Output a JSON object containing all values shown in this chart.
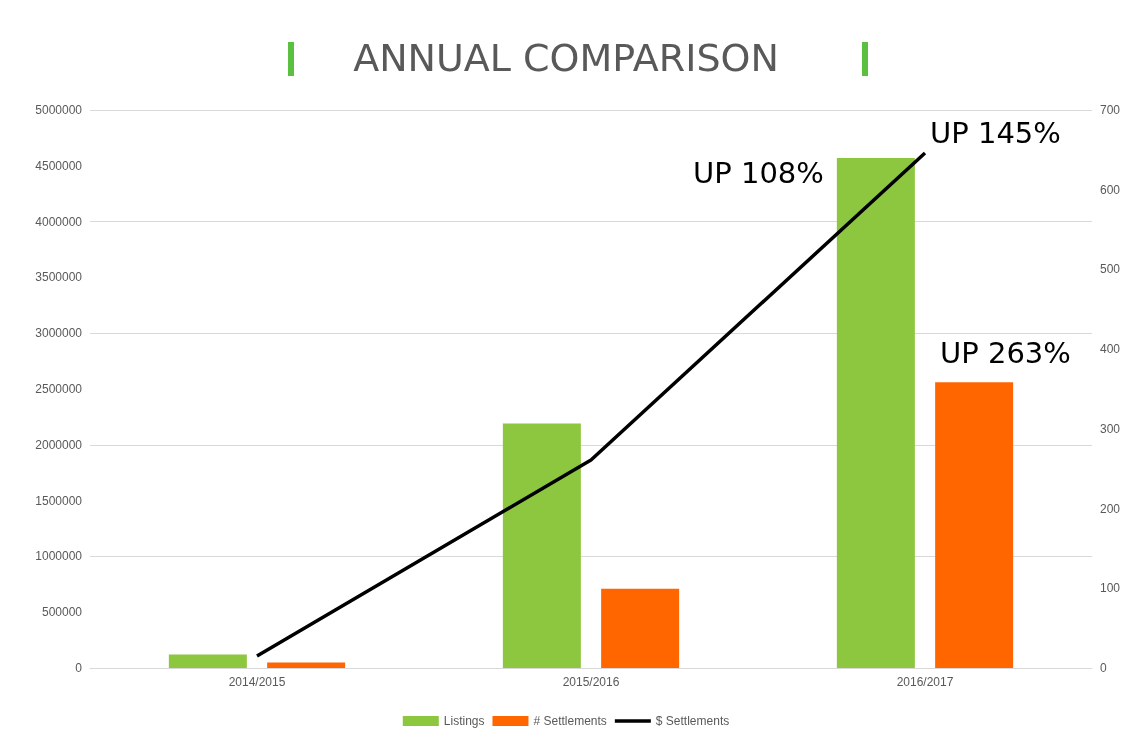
{
  "chart_data": {
    "type": "bar",
    "title": "ANNUAL COMPARISON",
    "categories": [
      "2014/2015",
      "2015/2016",
      "2016/2017"
    ],
    "series": [
      {
        "name": "Listings",
        "color": "#8dc63f",
        "values": [
          120000,
          2190000,
          4570000
        ]
      },
      {
        "name": "# Settlements",
        "color": "#ff6600",
        "values": [
          50000,
          710000,
          2560000
        ]
      },
      {
        "name": "$ Settlements",
        "type": "line",
        "axis": "y2",
        "color": "#000000",
        "values": [
          15,
          261,
          646
        ]
      }
    ],
    "ylim": [
      0,
      5000000
    ],
    "yticks": [
      0,
      500000,
      1000000,
      1500000,
      2000000,
      2500000,
      3000000,
      3500000,
      4000000,
      4500000,
      5000000
    ],
    "y2lim": [
      0,
      700
    ],
    "y2ticks": [
      0,
      100,
      200,
      300,
      400,
      500,
      600,
      700
    ],
    "annotations": [
      "UP 108%",
      "UP 145%",
      "UP 263%"
    ],
    "grid": "y",
    "legend": "bottom",
    "marker": "none"
  }
}
